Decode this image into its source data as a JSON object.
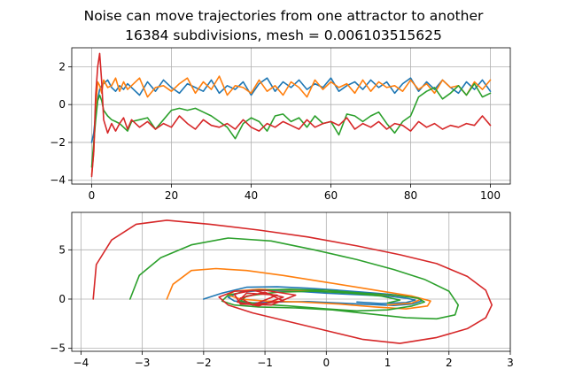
{
  "figure": {
    "title_line1": "Noise can move trajectories from one attractor to another",
    "title_line2": "16384 subdivisions, mesh = 0.006103515625"
  },
  "chart_data": [
    {
      "type": "line",
      "xlim": [
        -5,
        105
      ],
      "ylim": [
        -4.2,
        3.0
      ],
      "xticks": [
        0,
        20,
        40,
        60,
        80,
        100
      ],
      "yticks": [
        -4,
        -2,
        0,
        2
      ],
      "xtick_labels": [
        "0",
        "20",
        "40",
        "60",
        "80",
        "100"
      ],
      "ytick_labels": [
        "−4",
        "−2",
        "0",
        "2"
      ],
      "grid": true,
      "series": [
        {
          "color": "#1f77b4",
          "x": [
            0,
            0.5,
            1,
            1.5,
            2,
            2.5,
            3,
            4,
            5,
            6,
            7,
            8,
            9,
            10,
            12,
            14,
            16,
            18,
            20,
            22,
            24,
            26,
            28,
            30,
            32,
            34,
            36,
            38,
            40,
            42,
            44,
            46,
            48,
            50,
            52,
            54,
            56,
            58,
            60,
            62,
            64,
            66,
            68,
            70,
            72,
            74,
            76,
            78,
            80,
            82,
            84,
            86,
            88,
            90,
            92,
            94,
            96,
            98,
            100
          ],
          "y": [
            -2.0,
            -1.5,
            -0.5,
            0.3,
            0.8,
            1.0,
            1.1,
            1.3,
            0.9,
            0.7,
            1.0,
            0.8,
            1.1,
            0.9,
            0.5,
            1.2,
            0.7,
            1.3,
            0.9,
            0.6,
            1.1,
            0.9,
            0.7,
            1.3,
            0.6,
            1.0,
            0.8,
            1.2,
            0.5,
            1.1,
            1.4,
            0.7,
            1.2,
            0.9,
            1.3,
            0.8,
            1.1,
            0.9,
            1.4,
            0.7,
            1.0,
            1.2,
            0.8,
            1.3,
            0.9,
            1.2,
            0.6,
            1.1,
            1.4,
            0.7,
            1.2,
            0.8,
            1.3,
            0.9,
            0.6,
            1.2,
            0.8,
            1.3,
            0.7
          ]
        },
        {
          "color": "#ff7f0e",
          "x": [
            0,
            0.5,
            1,
            1.5,
            2,
            2.5,
            3,
            4,
            5,
            6,
            7,
            8,
            9,
            10,
            12,
            14,
            16,
            18,
            20,
            22,
            24,
            26,
            28,
            30,
            32,
            34,
            36,
            38,
            40,
            42,
            44,
            46,
            48,
            50,
            52,
            54,
            56,
            58,
            60,
            62,
            64,
            66,
            68,
            70,
            72,
            74,
            76,
            78,
            80,
            82,
            84,
            86,
            88,
            90,
            92,
            94,
            96,
            98,
            100
          ],
          "y": [
            -3.7,
            -2.5,
            -0.2,
            1.2,
            1.0,
            0.6,
            1.3,
            0.9,
            1.0,
            1.4,
            0.7,
            1.2,
            0.8,
            1.0,
            1.4,
            0.4,
            0.9,
            1.0,
            0.7,
            1.1,
            1.4,
            0.6,
            1.2,
            0.8,
            1.5,
            0.5,
            1.0,
            0.9,
            0.6,
            1.3,
            0.7,
            1.0,
            0.5,
            1.2,
            0.9,
            0.4,
            1.3,
            0.8,
            1.2,
            0.9,
            1.1,
            0.6,
            1.3,
            0.7,
            1.2,
            0.9,
            1.0,
            0.7,
            1.3,
            0.8,
            1.1,
            0.6,
            1.3,
            0.9,
            1.0,
            0.5,
            1.2,
            0.8,
            1.3
          ]
        },
        {
          "color": "#2ca02c",
          "x": [
            0,
            0.5,
            1,
            1.5,
            2,
            2.5,
            3,
            4,
            5,
            6,
            7,
            8,
            9,
            10,
            12,
            14,
            16,
            18,
            20,
            22,
            24,
            26,
            28,
            30,
            32,
            34,
            36,
            38,
            40,
            42,
            44,
            46,
            48,
            50,
            52,
            54,
            56,
            58,
            60,
            62,
            64,
            66,
            68,
            70,
            72,
            74,
            76,
            78,
            80,
            82,
            84,
            86,
            88,
            90,
            92,
            94,
            96,
            98,
            100
          ],
          "y": [
            -3.3,
            -2.0,
            -0.8,
            0.2,
            0.5,
            0.2,
            -0.3,
            -0.6,
            -0.8,
            -0.9,
            -1.0,
            -1.2,
            -1.4,
            -0.9,
            -0.8,
            -0.7,
            -1.3,
            -0.8,
            -0.3,
            -0.2,
            -0.3,
            -0.2,
            -0.4,
            -0.6,
            -0.9,
            -1.2,
            -1.8,
            -1.0,
            -0.7,
            -0.9,
            -1.4,
            -0.6,
            -0.5,
            -0.9,
            -0.7,
            -1.2,
            -0.6,
            -1.0,
            -0.9,
            -1.6,
            -0.5,
            -0.6,
            -0.9,
            -0.6,
            -0.4,
            -1.0,
            -1.5,
            -0.9,
            -0.6,
            0.4,
            0.7,
            0.9,
            0.3,
            0.6,
            1.0,
            0.5,
            1.1,
            0.4,
            0.6
          ]
        },
        {
          "color": "#d62728",
          "x": [
            0,
            0.5,
            1,
            1.5,
            2,
            2.5,
            3,
            4,
            5,
            6,
            7,
            8,
            9,
            10,
            12,
            14,
            16,
            18,
            20,
            22,
            24,
            26,
            28,
            30,
            32,
            34,
            36,
            38,
            40,
            42,
            44,
            46,
            48,
            50,
            52,
            54,
            56,
            58,
            60,
            62,
            64,
            66,
            68,
            70,
            72,
            74,
            76,
            78,
            80,
            82,
            84,
            86,
            88,
            90,
            92,
            94,
            96,
            98,
            100
          ],
          "y": [
            -3.8,
            -2.5,
            0.5,
            2.0,
            2.7,
            1.2,
            -0.8,
            -1.5,
            -1.0,
            -1.4,
            -1.0,
            -0.7,
            -1.3,
            -0.8,
            -1.2,
            -0.9,
            -1.3,
            -1.0,
            -1.2,
            -0.6,
            -1.0,
            -1.3,
            -0.8,
            -1.1,
            -1.2,
            -1.0,
            -1.3,
            -0.8,
            -1.2,
            -1.4,
            -1.0,
            -1.2,
            -0.9,
            -1.1,
            -1.3,
            -0.8,
            -1.2,
            -1.0,
            -0.9,
            -1.1,
            -0.7,
            -1.3,
            -1.0,
            -1.2,
            -0.9,
            -1.3,
            -1.0,
            -1.1,
            -1.4,
            -0.9,
            -1.2,
            -1.0,
            -1.3,
            -1.1,
            -1.2,
            -1.0,
            -1.1,
            -0.6,
            -1.1
          ]
        }
      ]
    },
    {
      "type": "line",
      "xlim": [
        -4.15,
        3.0
      ],
      "ylim": [
        -5.3,
        8.8
      ],
      "xticks": [
        -4,
        -3,
        -2,
        -1,
        0,
        1,
        2,
        3
      ],
      "yticks": [
        -5,
        0,
        5
      ],
      "xtick_labels": [
        "−4",
        "−3",
        "−2",
        "−1",
        "0",
        "1",
        "2",
        "3"
      ],
      "ytick_labels": [
        "−5",
        "0",
        "5"
      ],
      "grid": true,
      "series": [
        {
          "color": "#1f77b4",
          "closed": false,
          "x": [
            -2.0,
            -1.7,
            -1.3,
            -0.8,
            -0.3,
            0.2,
            0.6,
            1.0,
            1.3,
            1.5,
            1.55,
            1.4,
            1.1,
            0.7,
            0.2,
            -0.3,
            -0.8,
            -1.2,
            -1.5,
            -1.6,
            -1.4,
            -1.0,
            -0.5,
            0.0,
            0.5,
            1.0,
            1.3,
            1.45,
            1.3,
            0.9,
            0.5
          ],
          "y": [
            0.0,
            0.6,
            1.2,
            1.25,
            1.1,
            0.9,
            0.7,
            0.5,
            0.3,
            0.1,
            -0.2,
            -0.5,
            -0.65,
            -0.55,
            -0.4,
            -0.25,
            -0.3,
            -0.4,
            -0.2,
            0.2,
            0.7,
            0.9,
            0.8,
            0.6,
            0.45,
            0.3,
            0.1,
            -0.1,
            -0.35,
            -0.45,
            -0.3
          ]
        },
        {
          "color": "#ff7f0e",
          "closed": false,
          "x": [
            -2.6,
            -2.5,
            -2.2,
            -1.8,
            -1.3,
            -0.7,
            -0.1,
            0.5,
            1.0,
            1.4,
            1.7,
            1.65,
            1.3,
            0.8,
            0.2,
            -0.4,
            -1.0,
            -1.4,
            -1.6,
            -1.5,
            -1.1,
            -0.5,
            0.2,
            0.8,
            1.3,
            1.55,
            1.4,
            1.0
          ],
          "y": [
            0.0,
            1.5,
            2.9,
            3.1,
            2.9,
            2.4,
            1.8,
            1.2,
            0.7,
            0.3,
            -0.2,
            -0.7,
            -1.0,
            -0.8,
            -0.5,
            -0.3,
            -0.2,
            0.0,
            0.4,
            0.8,
            1.0,
            0.9,
            0.7,
            0.5,
            0.3,
            0.0,
            -0.4,
            -0.6
          ]
        },
        {
          "color": "#2ca02c",
          "closed": false,
          "x": [
            -3.2,
            -3.05,
            -2.7,
            -2.2,
            -1.6,
            -0.9,
            -0.2,
            0.5,
            1.1,
            1.6,
            2.0,
            2.15,
            2.1,
            1.8,
            1.3,
            0.7,
            0.1,
            -0.5,
            -1.1,
            -1.5,
            -1.7,
            -1.6,
            -1.2,
            -0.6,
            0.0,
            0.6,
            1.1,
            1.5,
            1.6,
            1.4,
            1.0,
            0.5,
            0.0,
            -0.6,
            -1.1,
            -1.4,
            -1.3,
            -0.8,
            -0.2,
            0.4,
            0.9,
            1.2,
            1.0
          ],
          "y": [
            0.0,
            2.4,
            4.2,
            5.5,
            6.2,
            5.9,
            5.0,
            4.0,
            3.0,
            2.0,
            0.8,
            -0.6,
            -1.6,
            -2.0,
            -1.9,
            -1.5,
            -1.1,
            -0.9,
            -0.8,
            -0.6,
            -0.2,
            0.4,
            0.9,
            1.0,
            0.9,
            0.6,
            0.4,
            0.1,
            -0.3,
            -0.7,
            -1.1,
            -1.2,
            -1.0,
            -0.7,
            -0.5,
            -0.2,
            0.3,
            0.7,
            0.8,
            0.6,
            0.3,
            -0.1,
            -0.4
          ]
        },
        {
          "color": "#d62728",
          "closed": false,
          "x": [
            -3.8,
            -3.75,
            -3.5,
            -3.1,
            -2.6,
            -1.9,
            -1.1,
            -0.3,
            0.5,
            1.2,
            1.8,
            2.3,
            2.6,
            2.7,
            2.6,
            2.3,
            1.8,
            1.2,
            0.6,
            0.0,
            -0.6,
            -1.2,
            -1.6,
            -1.75,
            -1.5,
            -1.0,
            -0.5,
            -0.9,
            -1.4,
            -1.5,
            -1.2,
            -0.7,
            -1.1,
            -1.45,
            -1.3,
            -0.8,
            -1.2,
            -1.4,
            -1.0,
            -0.7,
            -1.1
          ],
          "y": [
            0.0,
            3.5,
            6.0,
            7.6,
            8.0,
            7.6,
            7.0,
            6.3,
            5.4,
            4.5,
            3.6,
            2.3,
            0.9,
            -0.6,
            -1.9,
            -3.0,
            -3.9,
            -4.5,
            -4.1,
            -3.2,
            -2.3,
            -1.4,
            -0.6,
            0.2,
            0.8,
            0.9,
            0.4,
            -0.6,
            -0.5,
            0.5,
            0.9,
            0.2,
            -0.7,
            -0.3,
            0.6,
            0.4,
            -0.6,
            0.1,
            0.7,
            -0.2,
            -0.5
          ]
        }
      ]
    }
  ]
}
